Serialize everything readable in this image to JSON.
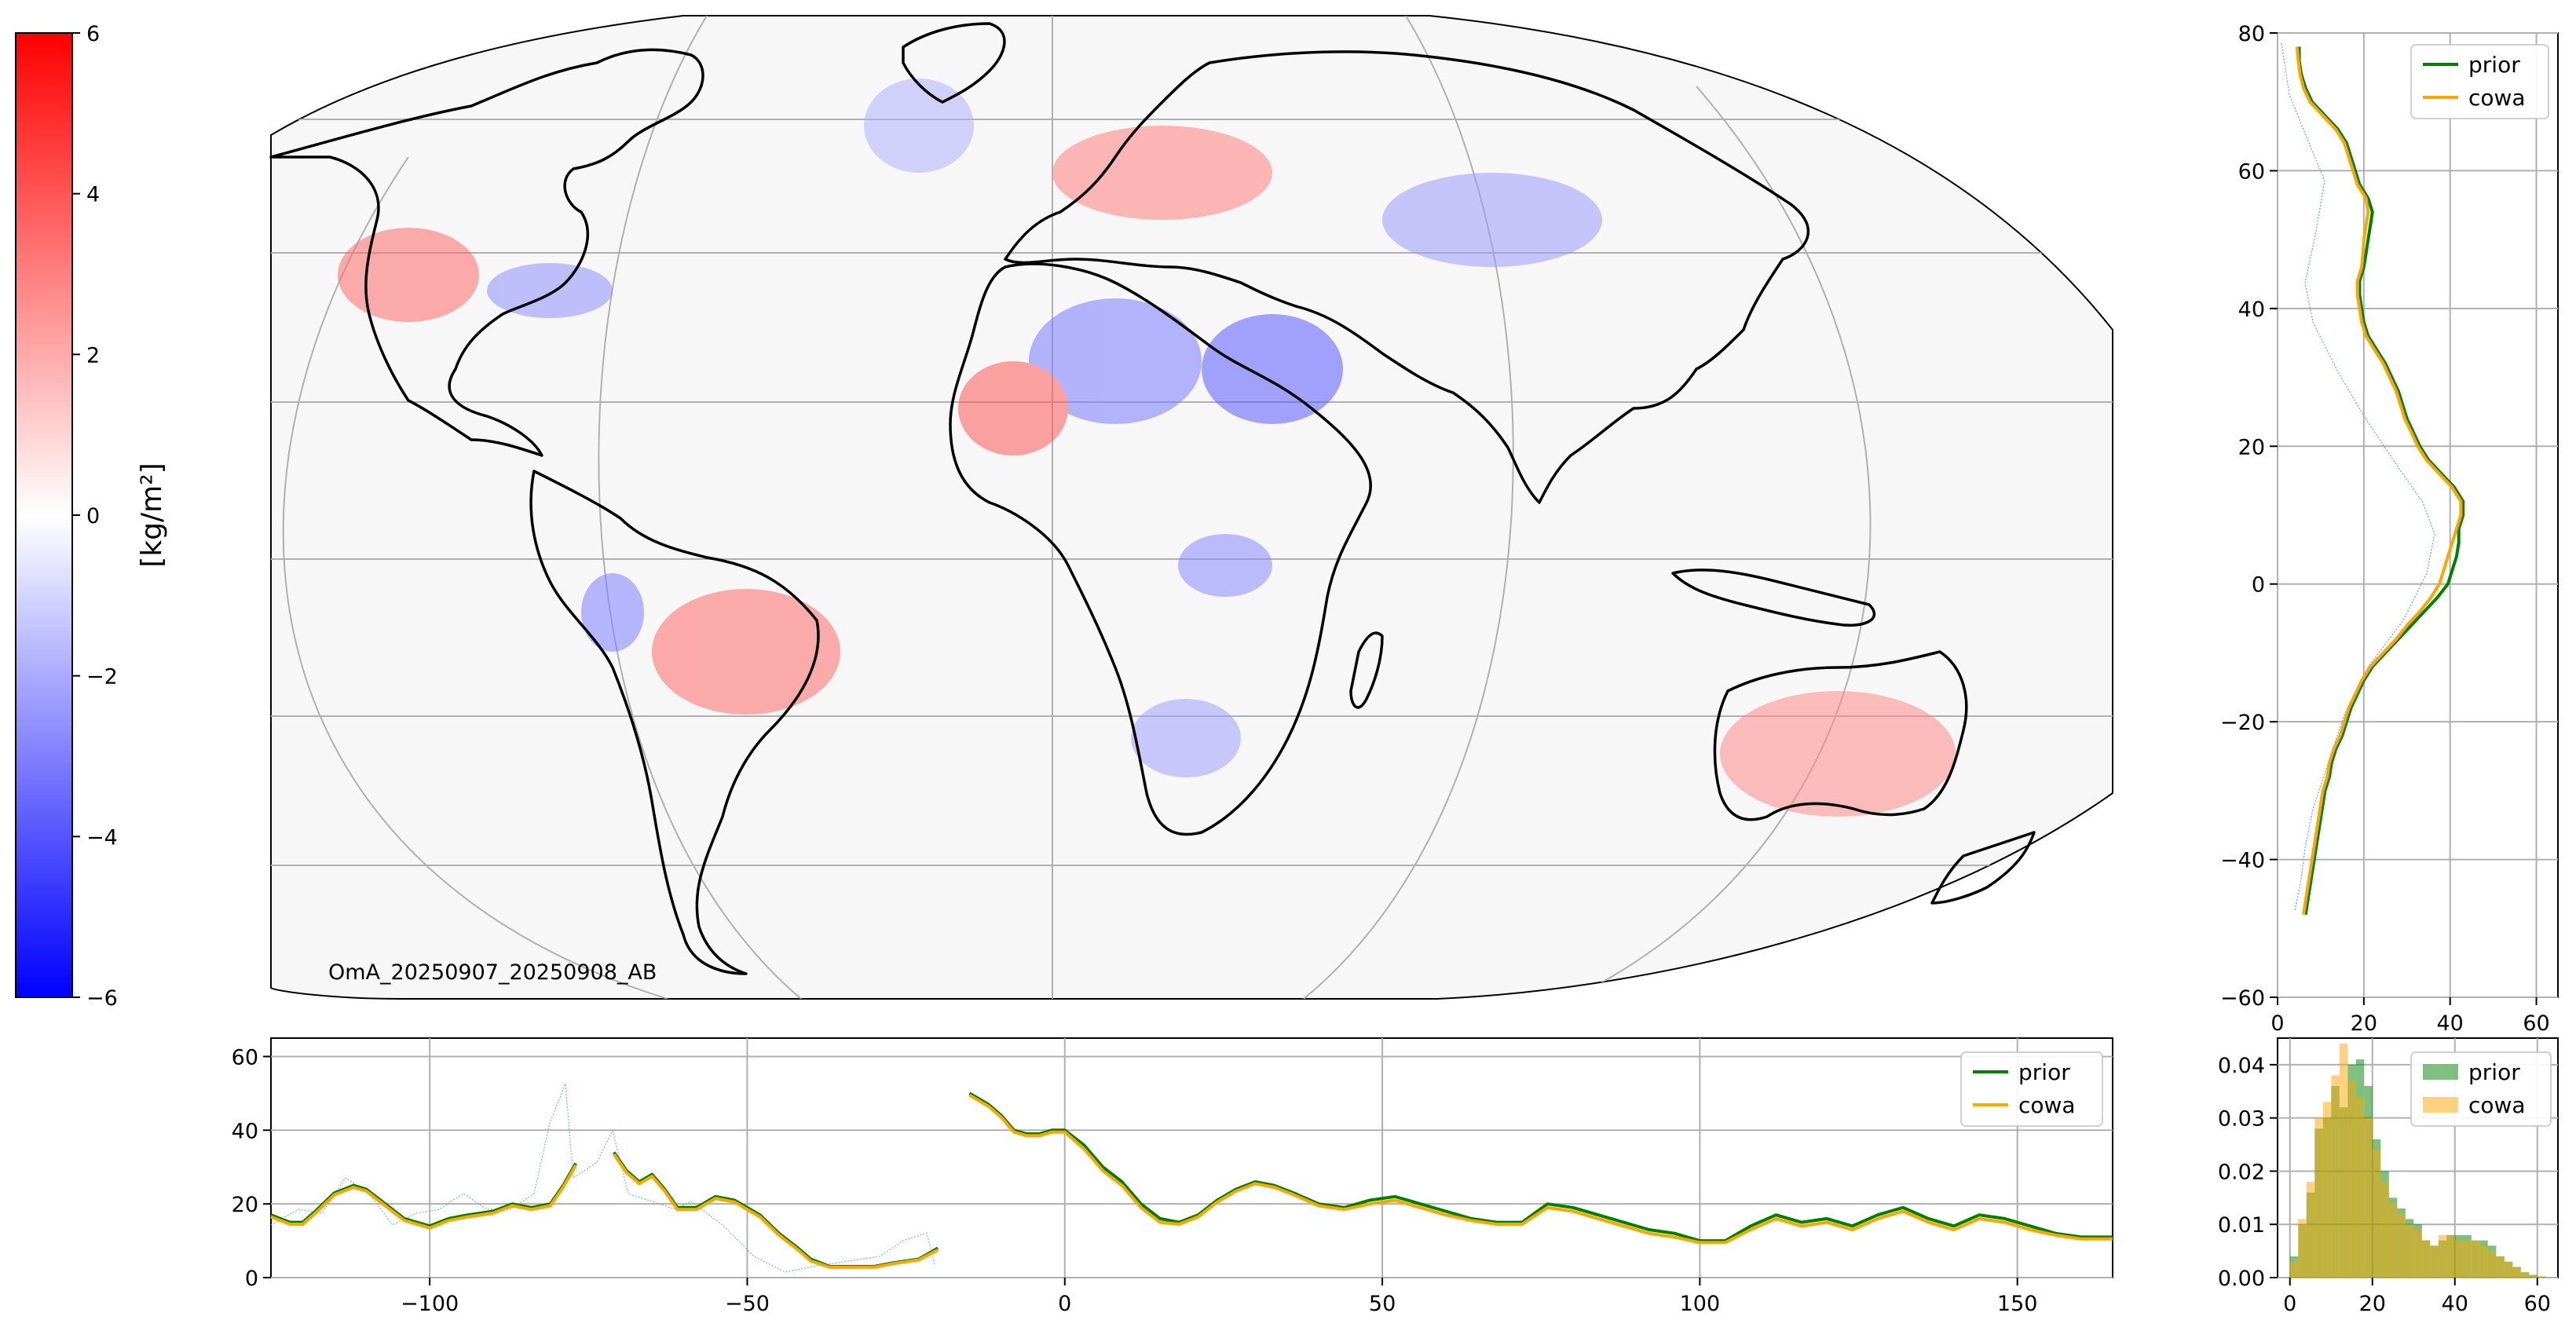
{
  "colors": {
    "prior": "#008000",
    "cowa": "#FFA500",
    "obs": "#5fa8d8",
    "cmap_neg": "#0000ff",
    "cmap_pos": "#ff0000",
    "cmap_mid": "#ffffff",
    "grid": "#b0b0b0",
    "coast": "#000000",
    "map_bg": "#f7f7f7"
  },
  "colorbar": {
    "label": "[kg/m²]",
    "ticks": [
      "6",
      "4",
      "2",
      "0",
      "−2",
      "−4",
      "−6"
    ],
    "range": [
      -6,
      6
    ]
  },
  "map": {
    "annotation": "OmA_20250907_20250908_AB",
    "projection": "Mollweide"
  },
  "icons": {
    "coastline": "world-coastline-icon"
  },
  "chart_data": [
    {
      "type": "line",
      "panel": "right-latitude-profile",
      "orientation": "vertical",
      "xlim": [
        0,
        65
      ],
      "ylim": [
        -60,
        80
      ],
      "xticks": [
        "0",
        "20",
        "40",
        "60"
      ],
      "yticks": [
        "80",
        "60",
        "40",
        "20",
        "0",
        "−20",
        "−40",
        "−60"
      ],
      "legend": [
        "prior",
        "cowa"
      ],
      "legend_loc": "upper right",
      "grid": true,
      "series": [
        {
          "name": "prior",
          "y": [
            78,
            76,
            74,
            72,
            70,
            68,
            66,
            64,
            62,
            60,
            58,
            56,
            54,
            52,
            50,
            48,
            46,
            44,
            42,
            40,
            38,
            36,
            34,
            32,
            30,
            28,
            26,
            24,
            22,
            20,
            18,
            16,
            14,
            12,
            10,
            8,
            6,
            4,
            2,
            0,
            -2,
            -4,
            -6,
            -8,
            -10,
            -12,
            -14,
            -16,
            -18,
            -20,
            -22,
            -24,
            -26,
            -28,
            -30,
            -32,
            -34,
            -36,
            -38,
            -40,
            -42,
            -44,
            -46,
            -48
          ],
          "x": [
            5,
            5,
            5.5,
            6.5,
            8,
            11,
            14,
            16,
            17,
            18,
            19,
            21,
            22,
            21.5,
            21,
            20.5,
            20,
            19,
            19,
            19.5,
            20,
            21,
            23,
            25,
            26.5,
            28,
            29,
            30,
            31.5,
            33,
            35,
            38,
            41,
            43,
            43,
            42,
            42,
            41.5,
            40.5,
            39.5,
            37,
            34,
            31,
            28,
            25,
            22,
            20,
            18.5,
            17,
            16,
            15,
            13.5,
            12.5,
            12,
            11,
            10.5,
            10,
            9.5,
            9,
            8.5,
            8,
            7.5,
            7,
            6.5
          ]
        },
        {
          "name": "cowa",
          "y": [
            78,
            76,
            74,
            72,
            70,
            68,
            66,
            64,
            62,
            60,
            58,
            56,
            54,
            52,
            50,
            48,
            46,
            44,
            42,
            40,
            38,
            36,
            34,
            32,
            30,
            28,
            26,
            24,
            22,
            20,
            18,
            16,
            14,
            12,
            10,
            8,
            6,
            4,
            2,
            0,
            -2,
            -4,
            -6,
            -8,
            -10,
            -12,
            -14,
            -16,
            -18,
            -20,
            -22,
            -24,
            -26,
            -28,
            -30,
            -32,
            -34,
            -36,
            -38,
            -40,
            -42,
            -44,
            -46,
            -48
          ],
          "x": [
            4.5,
            4.8,
            5.2,
            6,
            7.5,
            10.5,
            13.5,
            15.5,
            16.5,
            17.5,
            18.5,
            20.5,
            21,
            20.5,
            20,
            19.8,
            19.5,
            18.5,
            18.5,
            19,
            19.5,
            20.5,
            22.5,
            24.5,
            26,
            27.5,
            28.5,
            29.5,
            31,
            32.5,
            34.5,
            37.5,
            40.5,
            42.5,
            42.5,
            41.5,
            40.5,
            39.5,
            38.5,
            37.5,
            35.5,
            33,
            30,
            27.5,
            24.5,
            21.5,
            19.5,
            18,
            16.5,
            15.5,
            14.5,
            13,
            12,
            11.5,
            10.5,
            10,
            9.5,
            9,
            8.5,
            8,
            7.5,
            7,
            6.5,
            6
          ]
        }
      ]
    },
    {
      "type": "line",
      "panel": "bottom-longitude-profile",
      "xlim": [
        -125,
        165
      ],
      "ylim": [
        0,
        65
      ],
      "xticks": [
        "−100",
        "−50",
        "0",
        "50",
        "100",
        "150"
      ],
      "yticks": [
        "60",
        "40",
        "20",
        "0"
      ],
      "legend": [
        "prior",
        "cowa"
      ],
      "legend_loc": "upper right",
      "grid": true,
      "series": [
        {
          "name": "prior",
          "segments": [
            {
              "x": [
                -125,
                -122,
                -120,
                -118,
                -115,
                -112,
                -110,
                -107,
                -104,
                -100,
                -97,
                -94,
                -90,
                -87,
                -84,
                -81,
                -79,
                -77
              ],
              "y": [
                17,
                15,
                15,
                18,
                23,
                25,
                24,
                20,
                16,
                14,
                16,
                17,
                18,
                20,
                19,
                20,
                25,
                31
              ]
            },
            {
              "x": [
                -71,
                -69,
                -67,
                -65,
                -63,
                -61,
                -58,
                -55,
                -52,
                -48,
                -45,
                -42,
                -40,
                -37,
                -34,
                -30,
                -27,
                -23,
                -20
              ],
              "y": [
                34,
                29,
                26,
                28,
                24,
                19,
                19,
                22,
                21,
                17,
                12,
                8,
                5,
                3,
                3,
                3,
                4,
                5,
                8
              ]
            },
            {
              "x": [
                -15,
                -12,
                -10,
                -8,
                -6,
                -4,
                -2,
                0,
                3,
                6,
                9,
                12,
                15,
                18,
                21,
                24,
                27,
                30,
                33,
                36,
                40,
                44,
                48,
                52,
                56,
                60,
                64,
                68,
                72,
                76,
                80,
                84,
                88,
                92,
                96,
                100,
                104,
                108,
                112,
                116,
                120,
                124,
                128,
                132,
                136,
                140,
                144,
                148,
                152,
                156,
                160,
                165
              ],
              "y": [
                50,
                47,
                44,
                40,
                39,
                39,
                40,
                40,
                36,
                30,
                26,
                20,
                16,
                15,
                17,
                21,
                24,
                26,
                25,
                23,
                20,
                19,
                21,
                22,
                20,
                18,
                16,
                15,
                15,
                20,
                19,
                17,
                15,
                13,
                12,
                10,
                10,
                14,
                17,
                15,
                16,
                14,
                17,
                19,
                16,
                14,
                17,
                16,
                14,
                12,
                11,
                11
              ]
            }
          ]
        },
        {
          "name": "cowa",
          "segments": [
            {
              "x": [
                -125,
                -122,
                -120,
                -118,
                -115,
                -112,
                -110,
                -107,
                -104,
                -100,
                -97,
                -94,
                -90,
                -87,
                -84,
                -81,
                -79,
                -77
              ],
              "y": [
                16.5,
                14.5,
                14.5,
                17.5,
                22.5,
                24.5,
                23.5,
                19.5,
                15.5,
                13.5,
                15.5,
                16.5,
                17.5,
                19.5,
                18.5,
                19.5,
                24.5,
                30.5
              ]
            },
            {
              "x": [
                -71,
                -69,
                -67,
                -65,
                -63,
                -61,
                -58,
                -55,
                -52,
                -48,
                -45,
                -42,
                -40,
                -37,
                -34,
                -30,
                -27,
                -23,
                -20
              ],
              "y": [
                33.5,
                28.5,
                25.5,
                27.5,
                23.5,
                18.5,
                18.5,
                21.5,
                20.5,
                16.5,
                11.5,
                7.5,
                4.5,
                2.8,
                2.8,
                2.8,
                3.8,
                4.8,
                7.5
              ]
            },
            {
              "x": [
                -15,
                -12,
                -10,
                -8,
                -6,
                -4,
                -2,
                0,
                3,
                6,
                9,
                12,
                15,
                18,
                21,
                24,
                27,
                30,
                33,
                36,
                40,
                44,
                48,
                52,
                56,
                60,
                64,
                68,
                72,
                76,
                80,
                84,
                88,
                92,
                96,
                100,
                104,
                108,
                112,
                116,
                120,
                124,
                128,
                132,
                136,
                140,
                144,
                148,
                152,
                156,
                160,
                165
              ],
              "y": [
                49.5,
                46.5,
                43.5,
                39.5,
                38.5,
                38.5,
                39.5,
                39.5,
                35,
                29,
                25,
                19,
                15,
                14.5,
                16.5,
                20.5,
                23.5,
                25.5,
                24.5,
                22.5,
                19.5,
                18.5,
                20,
                21,
                19,
                17,
                15.5,
                14.5,
                14.5,
                19,
                18,
                16,
                14,
                12,
                11,
                9.5,
                9.5,
                13,
                16,
                14,
                15,
                13,
                16,
                18,
                15,
                13,
                16,
                15,
                13,
                11.5,
                10.5,
                10.5
              ]
            }
          ]
        }
      ]
    },
    {
      "type": "bar",
      "panel": "bottom-right-histogram",
      "xlim": [
        -3,
        65
      ],
      "ylim": [
        0,
        0.045
      ],
      "xticks": [
        "0",
        "20",
        "40",
        "60"
      ],
      "yticks": [
        "0.04",
        "0.03",
        "0.02",
        "0.01",
        "0.00"
      ],
      "legend": [
        "prior",
        "cowa"
      ],
      "legend_loc": "upper right",
      "grid": true,
      "bin_edges": [
        0,
        2,
        4,
        6,
        8,
        10,
        12,
        14,
        16,
        18,
        20,
        22,
        24,
        26,
        28,
        30,
        32,
        34,
        36,
        38,
        40,
        42,
        44,
        46,
        48,
        50,
        52,
        54,
        56,
        58,
        60,
        62
      ],
      "series": [
        {
          "name": "prior",
          "values": [
            0.004,
            0.01,
            0.016,
            0.028,
            0.03,
            0.036,
            0.032,
            0.04,
            0.041,
            0.036,
            0.026,
            0.02,
            0.015,
            0.013,
            0.011,
            0.01,
            0.007,
            0.006,
            0.007,
            0.008,
            0.008,
            0.008,
            0.007,
            0.007,
            0.006,
            0.004,
            0.003,
            0.002,
            0.001,
            0.0005,
            0.0002
          ]
        },
        {
          "name": "cowa",
          "values": [
            0.003,
            0.011,
            0.018,
            0.03,
            0.033,
            0.038,
            0.044,
            0.037,
            0.034,
            0.03,
            0.024,
            0.018,
            0.014,
            0.012,
            0.01,
            0.009,
            0.007,
            0.006,
            0.008,
            0.008,
            0.007,
            0.007,
            0.007,
            0.006,
            0.005,
            0.004,
            0.003,
            0.002,
            0.001,
            0.0005,
            0.0002
          ]
        }
      ]
    }
  ]
}
